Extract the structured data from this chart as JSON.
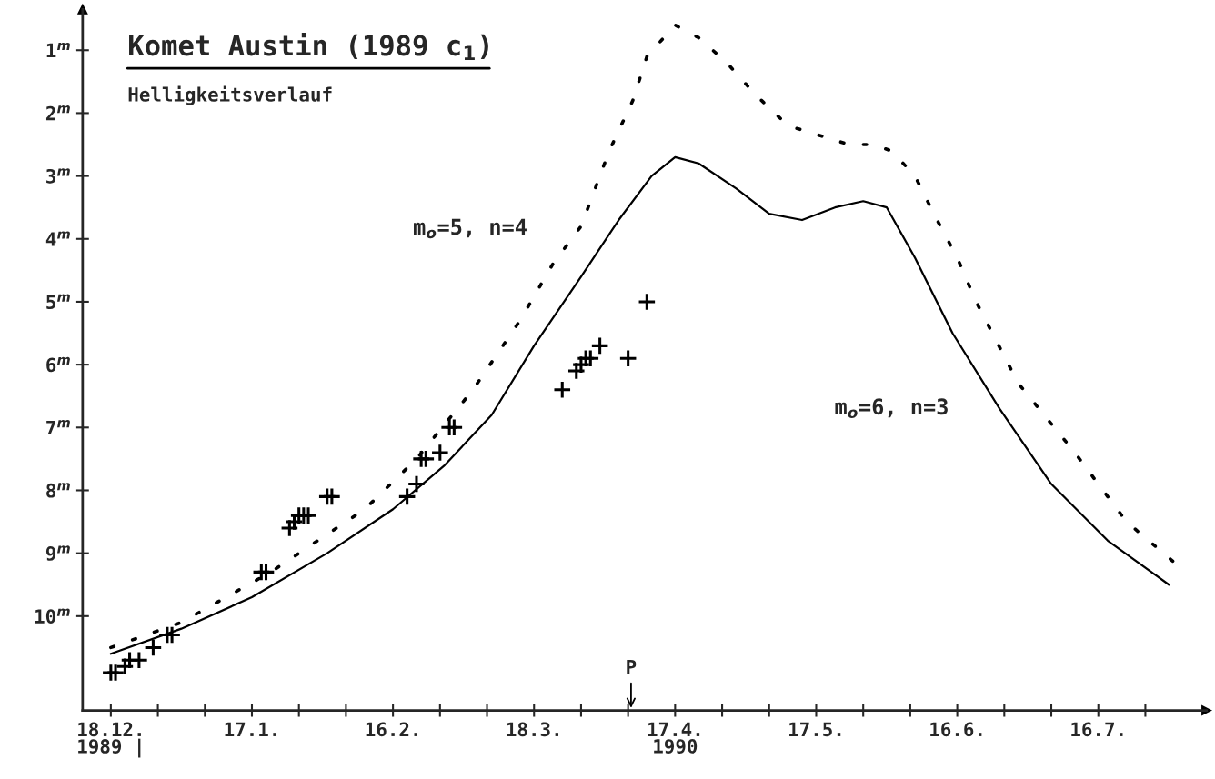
{
  "chart_data": {
    "type": "line",
    "title": "Komet Austin (1989 c$_{1}$)",
    "subtitle": "Helligkeitsverlauf",
    "xlim": [
      "1989-12-12",
      "1990-08-08"
    ],
    "xticks": [
      {
        "value": "1989-12-18",
        "label": "18.12.\n1989 |"
      },
      {
        "value": "1989-12-28",
        "label": null
      },
      {
        "value": "1990-01-07",
        "label": null
      },
      {
        "value": "1990-01-17",
        "label": "17.1."
      },
      {
        "value": "1990-01-27",
        "label": null
      },
      {
        "value": "1990-02-06",
        "label": null
      },
      {
        "value": "1990-02-16",
        "label": "16.2."
      },
      {
        "value": "1990-02-26",
        "label": null
      },
      {
        "value": "1990-03-08",
        "label": null
      },
      {
        "value": "1990-03-18",
        "label": "18.3."
      },
      {
        "value": "1990-03-28",
        "label": null
      },
      {
        "value": "1990-04-07",
        "label": null
      },
      {
        "value": "1990-04-17",
        "label": "17.4.\n1990"
      },
      {
        "value": "1990-04-27",
        "label": null
      },
      {
        "value": "1990-05-07",
        "label": null
      },
      {
        "value": "1990-05-17",
        "label": "17.5."
      },
      {
        "value": "1990-05-27",
        "label": null
      },
      {
        "value": "1990-06-06",
        "label": null
      },
      {
        "value": "1990-06-16",
        "label": "16.6."
      },
      {
        "value": "1990-06-26",
        "label": null
      },
      {
        "value": "1990-07-06",
        "label": null
      },
      {
        "value": "1990-07-16",
        "label": "16.7."
      },
      {
        "value": "1990-07-26",
        "label": null
      }
    ],
    "ylim": [
      11.5,
      0.35
    ],
    "yticks": [
      {
        "value": 1,
        "label": "1$^{m}$"
      },
      {
        "value": 2,
        "label": "2$^{m}$"
      },
      {
        "value": 3,
        "label": "3$^{m}$"
      },
      {
        "value": 4,
        "label": "4$^{m}$"
      },
      {
        "value": 5,
        "label": "5$^{m}$"
      },
      {
        "value": 6,
        "label": "6$^{m}$"
      },
      {
        "value": 7,
        "label": "7$^{m}$"
      },
      {
        "value": 8,
        "label": "8$^{m}$"
      },
      {
        "value": 9,
        "label": "9$^{m}$"
      },
      {
        "value": 10,
        "label": "10$^{m}$"
      }
    ],
    "grid": false,
    "legend": false,
    "series": [
      {
        "name": "m$_{o}$=5, n=4",
        "line_style": "dotted",
        "color": "#000000",
        "x": [
          "1989-12-18",
          "1990-01-02",
          "1990-01-21",
          "1990-02-10",
          "1990-02-21",
          "1990-03-05",
          "1990-03-15",
          "1990-03-22",
          "1990-03-28",
          "1990-04-03",
          "1990-04-08",
          "1990-04-11",
          "1990-04-17",
          "1990-04-22",
          "1990-04-28",
          "1990-05-04",
          "1990-05-11",
          "1990-05-24",
          "1990-05-29",
          "1990-06-02",
          "1990-06-07",
          "1990-06-11",
          "1990-06-16",
          "1990-06-20",
          "1990-06-29",
          "1990-07-11",
          "1990-07-22",
          "1990-08-02"
        ],
        "values": [
          10.5,
          10.1,
          9.3,
          8.3,
          7.5,
          6.4,
          5.3,
          4.4,
          3.8,
          2.6,
          1.8,
          1.1,
          0.6,
          0.8,
          1.2,
          1.7,
          2.2,
          2.5,
          2.5,
          2.6,
          3.0,
          3.6,
          4.3,
          5.0,
          6.3,
          7.4,
          8.5,
          9.2
        ]
      },
      {
        "name": "m$_{o}$=6, n=3",
        "line_style": "solid",
        "color": "#000000",
        "x": [
          "1989-12-18",
          "1990-01-02",
          "1990-01-17",
          "1990-02-02",
          "1990-02-16",
          "1990-02-27",
          "1990-03-09",
          "1990-03-18",
          "1990-03-28",
          "1990-04-05",
          "1990-04-12",
          "1990-04-17",
          "1990-04-22",
          "1990-04-30",
          "1990-05-07",
          "1990-05-14",
          "1990-05-21",
          "1990-05-27",
          "1990-06-01",
          "1990-06-07",
          "1990-06-15",
          "1990-06-25",
          "1990-07-06",
          "1990-07-18",
          "1990-07-31"
        ],
        "values": [
          10.6,
          10.2,
          9.7,
          9.0,
          8.3,
          7.6,
          6.8,
          5.7,
          4.6,
          3.7,
          3.0,
          2.7,
          2.8,
          3.2,
          3.6,
          3.7,
          3.5,
          3.4,
          3.5,
          4.3,
          5.5,
          6.7,
          7.9,
          8.8,
          9.5
        ]
      },
      {
        "type": "scatter",
        "marker": "cross",
        "color": "#000000",
        "x": [
          "1989-12-18",
          "1989-12-19",
          "1989-12-21",
          "1989-12-22",
          "1989-12-24",
          "1989-12-27",
          "1989-12-30",
          "1989-12-31",
          "1990-01-19",
          "1990-01-20",
          "1990-01-25",
          "1990-01-26",
          "1990-01-27",
          "1990-01-28",
          "1990-01-29",
          "1990-02-02",
          "1990-02-03",
          "1990-02-19",
          "1990-02-21",
          "1990-02-22",
          "1990-02-23",
          "1990-02-26",
          "1990-02-28",
          "1990-03-01",
          "1990-03-24",
          "1990-03-27",
          "1990-03-28",
          "1990-03-29",
          "1990-03-30",
          "1990-04-01",
          "1990-04-07",
          "1990-04-11"
        ],
        "values": [
          10.9,
          10.9,
          10.8,
          10.7,
          10.7,
          10.5,
          10.3,
          10.3,
          9.3,
          9.3,
          8.6,
          8.5,
          8.4,
          8.4,
          8.4,
          8.1,
          8.1,
          8.1,
          7.9,
          7.5,
          7.5,
          7.4,
          7.0,
          7.0,
          6.4,
          6.1,
          6.0,
          5.9,
          5.9,
          5.7,
          5.9,
          5.0
        ]
      }
    ],
    "annotations": [
      "P"
    ]
  }
}
